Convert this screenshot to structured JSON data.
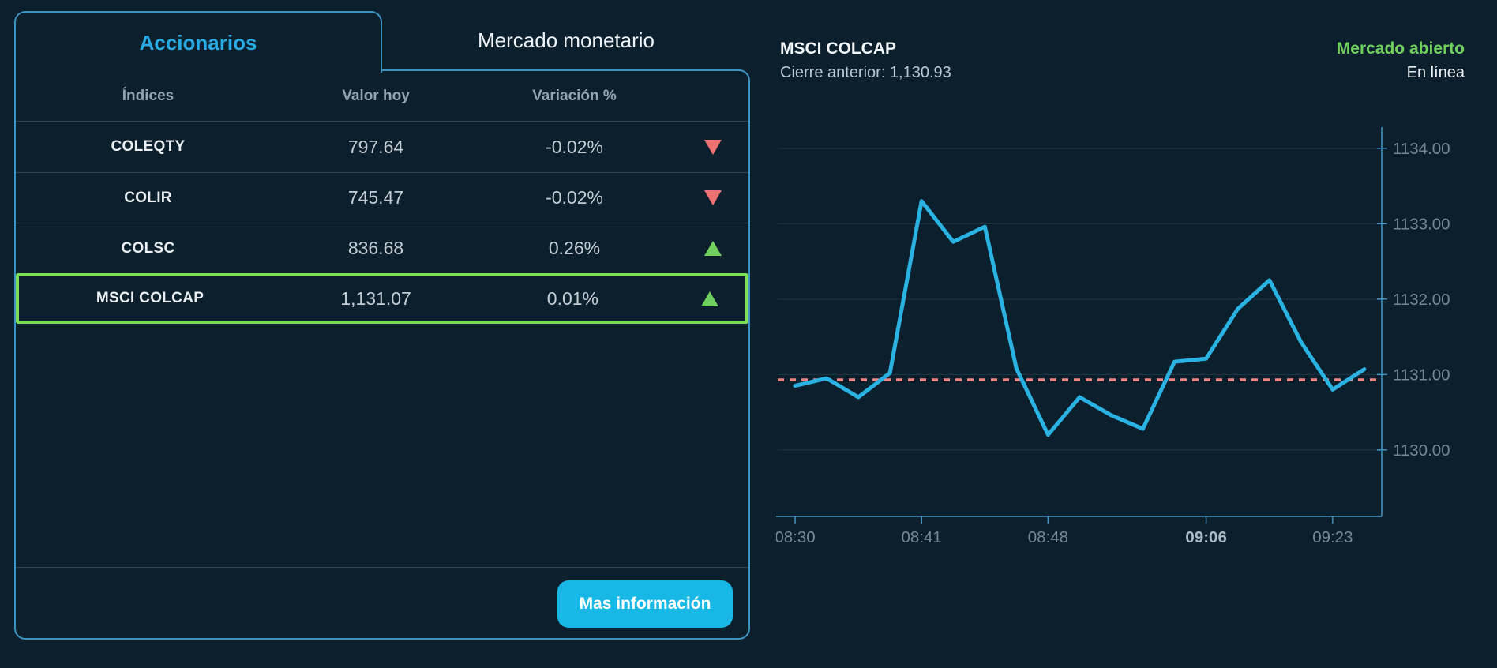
{
  "panel": {
    "tabs": [
      {
        "label": "Accionarios",
        "active": true
      },
      {
        "label": "Mercado monetario",
        "active": false
      }
    ],
    "table": {
      "headers": [
        "Índices",
        "Valor hoy",
        "Variación %"
      ],
      "rows": [
        {
          "name": "COLEQTY",
          "value": "797.64",
          "variation": "-0.02%",
          "direction": "down",
          "selected": false
        },
        {
          "name": "COLIR",
          "value": "745.47",
          "variation": "-0.02%",
          "direction": "down",
          "selected": false
        },
        {
          "name": "COLSC",
          "value": "836.68",
          "variation": "0.26%",
          "direction": "up",
          "selected": false
        },
        {
          "name": "MSCI COLCAP",
          "value": "1,131.07",
          "variation": "0.01%",
          "direction": "up",
          "selected": true
        }
      ]
    },
    "button_label": "Mas información"
  },
  "chart_header": {
    "title": "MSCI COLCAP",
    "subtitle": "Cierre anterior: 1,130.93",
    "status": "Mercado abierto",
    "status_line": "En línea"
  },
  "chart_data": {
    "type": "line",
    "title": "MSCI COLCAP",
    "xlabel": "",
    "ylabel": "",
    "series": [
      {
        "name": "MSCI COLCAP",
        "values": [
          1130.85,
          1130.95,
          1130.7,
          1131.02,
          1133.3,
          1132.76,
          1132.96,
          1131.08,
          1130.2,
          1130.7,
          1130.46,
          1130.28,
          1131.17,
          1131.21,
          1131.87,
          1132.25,
          1131.43,
          1130.8,
          1131.07
        ]
      }
    ],
    "x_tick_indices": [
      0,
      4,
      8,
      13,
      17
    ],
    "x_tick_labels": [
      "08:30",
      "08:41",
      "08:48",
      "09:06",
      "09:23"
    ],
    "highlighted_x_label": "09:06",
    "y_ticks": [
      1130.0,
      1131.0,
      1132.0,
      1133.0,
      1134.0
    ],
    "ylim": [
      1129.7,
      1134.5
    ],
    "grid": true,
    "legend": "none",
    "reference_line": {
      "label": "Cierre anterior",
      "value": 1130.93,
      "style": "dashed"
    }
  },
  "colors": {
    "background": "#0c1f2c",
    "panel-border": "#3f93c0",
    "accent": "#29abe2",
    "chart-line": "#29b2e2",
    "button": "#17b8e6",
    "green": "#7ddf57",
    "green-dark": "#6fcf5f",
    "red": "#ee7272",
    "dashed": "#ef8585",
    "grid": "#1e3845",
    "axis-line": "#4596c4",
    "axis-text": "#758793",
    "axis-text-bold": "#a9bac5",
    "text-primary": "#e9eff3",
    "text-secondary": "#c3cdd5",
    "text-muted": "#93a4b0",
    "separator": "rgba(150,180,200,0.25)"
  }
}
